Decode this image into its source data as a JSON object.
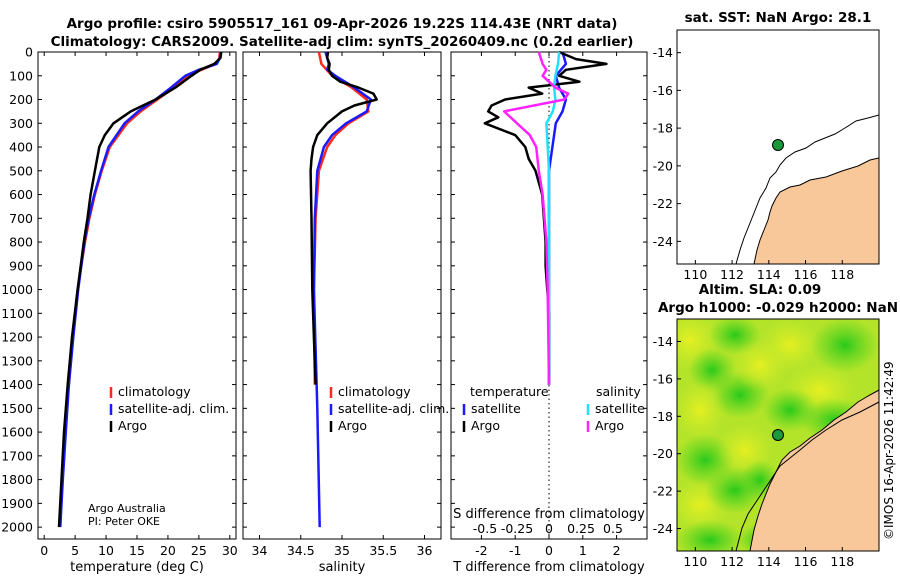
{
  "header": {
    "title_line1": "Argo profile: csiro 5905517_161 09-Apr-2026 19.22S 114.43E (NRT data)",
    "title_line2": "Climatology: CARS2009. Satellite-adj clim: synTS_20260409.nc (0.2d earlier)"
  },
  "colors": {
    "climatology": "#ff2a1a",
    "satellite": "#1a1aff",
    "argo": "#000000",
    "sat_salinity": "#22e0ff",
    "argo_salinity": "#ff22ff",
    "land": "#f9c89a",
    "float": "#1a9a3a"
  },
  "depth_axis": {
    "ticks": [
      "0",
      "100",
      "200",
      "300",
      "400",
      "500",
      "600",
      "700",
      "800",
      "900",
      "1000",
      "1100",
      "1200",
      "1300",
      "1400",
      "1500",
      "1600",
      "1700",
      "1800",
      "1900",
      "2000"
    ],
    "min": 0,
    "max": 2050
  },
  "credit": {
    "line1": "Argo Australia",
    "line2": "PI: Peter OKE"
  },
  "watermark": "©IMOS 16-Apr-2026 11:42:49",
  "chart_data": [
    {
      "type": "line",
      "name": "temperature",
      "xlabel": "temperature (deg C)",
      "xlim": [
        -1,
        31
      ],
      "xticks": [
        "0",
        "5",
        "10",
        "15",
        "20",
        "25",
        "30"
      ],
      "ylim": [
        0,
        2050
      ],
      "legend": [
        "climatology",
        "satellite-adj. clim.",
        "Argo"
      ],
      "series": [
        {
          "name": "climatology",
          "depth": [
            0,
            25,
            50,
            75,
            100,
            150,
            200,
            250,
            300,
            400,
            500,
            600,
            700,
            800,
            1000,
            1200,
            1400
          ],
          "values": [
            28.4,
            28.3,
            27.8,
            25.4,
            23.4,
            21.0,
            18.3,
            15.6,
            13.4,
            10.6,
            9.3,
            8.2,
            7.3,
            6.6,
            5.4,
            4.6,
            4.0
          ]
        },
        {
          "name": "satellite",
          "depth": [
            0,
            25,
            50,
            75,
            100,
            150,
            200,
            250,
            300,
            400,
            500,
            600,
            700,
            800,
            900,
            1000,
            1200,
            1400,
            1600,
            1800,
            2000
          ],
          "values": [
            28.6,
            28.4,
            27.9,
            25.0,
            22.8,
            20.5,
            18.0,
            15.2,
            13.0,
            10.4,
            9.2,
            8.1,
            7.2,
            6.5,
            6.0,
            5.5,
            4.7,
            4.0,
            3.5,
            3.0,
            2.6
          ]
        },
        {
          "name": "Argo",
          "depth": [
            0,
            25,
            50,
            75,
            100,
            150,
            200,
            250,
            300,
            350,
            400,
            500,
            600,
            700,
            800,
            1000,
            1200,
            1400,
            1600,
            1800,
            2000
          ],
          "values": [
            28.6,
            28.5,
            27.5,
            25.2,
            23.8,
            21.2,
            18.0,
            14.0,
            11.2,
            9.8,
            8.9,
            8.2,
            7.5,
            7.0,
            6.4,
            5.4,
            4.5,
            3.8,
            3.2,
            2.8,
            2.4
          ]
        }
      ]
    },
    {
      "type": "line",
      "name": "salinity",
      "xlabel": "salinity",
      "xlim": [
        33.8,
        36.2
      ],
      "xticks": [
        "34",
        "34.5",
        "35",
        "35.5",
        "36"
      ],
      "ylim": [
        0,
        2050
      ],
      "legend": [
        "climatology",
        "satellite-adj. clim.",
        "Argo"
      ],
      "series": [
        {
          "name": "climatology",
          "depth": [
            0,
            50,
            100,
            150,
            200,
            250,
            300,
            350,
            400,
            500,
            700,
            1000,
            1400
          ],
          "values": [
            34.72,
            34.75,
            34.88,
            35.12,
            35.3,
            35.32,
            35.08,
            34.92,
            34.82,
            34.72,
            34.68,
            34.66,
            34.67
          ]
        },
        {
          "name": "satellite",
          "depth": [
            0,
            25,
            50,
            75,
            100,
            150,
            200,
            250,
            300,
            350,
            400,
            500,
            700,
            1000,
            1500,
            2000
          ],
          "values": [
            34.8,
            34.82,
            34.84,
            34.82,
            34.92,
            35.15,
            35.35,
            35.3,
            35.05,
            34.88,
            34.78,
            34.7,
            34.67,
            34.66,
            34.7,
            34.73
          ]
        },
        {
          "name": "Argo",
          "depth": [
            0,
            25,
            50,
            75,
            100,
            125,
            150,
            175,
            200,
            225,
            250,
            300,
            350,
            400,
            450,
            500,
            700,
            1000,
            1200,
            1400
          ],
          "values": [
            34.83,
            34.82,
            34.85,
            34.84,
            34.88,
            34.98,
            35.2,
            35.38,
            35.42,
            35.15,
            35.0,
            34.82,
            34.7,
            34.65,
            34.63,
            34.62,
            34.63,
            34.64,
            34.66,
            34.68
          ]
        }
      ]
    },
    {
      "type": "line",
      "name": "differences",
      "xlabel": "T difference from climatology",
      "xlabel_top": "S difference from climatology",
      "xlim": [
        -2.9,
        2.9
      ],
      "xticks": [
        "-2",
        "-1",
        "0",
        "1",
        "2"
      ],
      "xticks_top": [
        "-0.5",
        "-0.25",
        "0",
        "0.25",
        "0.5"
      ],
      "ylim": [
        0,
        2050
      ],
      "legend_headers": [
        "temperature",
        "salinity"
      ],
      "legend_left": [
        "satellite",
        "Argo"
      ],
      "legend_right": [
        "satellite",
        "Argo"
      ],
      "series": [
        {
          "name": "T satellite",
          "depth": [
            0,
            50,
            100,
            150,
            200,
            250,
            300,
            400,
            500,
            600,
            800,
            1000,
            1400
          ],
          "values": [
            0.4,
            0.5,
            0.2,
            0.3,
            0.5,
            0.4,
            0.2,
            0.1,
            0.0,
            0.0,
            0.0,
            0.0,
            0.0
          ]
        },
        {
          "name": "T Argo",
          "depth": [
            0,
            30,
            50,
            75,
            100,
            125,
            150,
            175,
            200,
            225,
            250,
            275,
            300,
            350,
            400,
            450,
            500,
            600,
            700,
            800,
            900,
            1000,
            1100,
            1200,
            1300,
            1400
          ],
          "values": [
            0.3,
            0.8,
            1.7,
            0.5,
            0.3,
            0.9,
            -0.6,
            -0.2,
            -1.3,
            -1.7,
            -1.8,
            -1.5,
            -1.9,
            -1.0,
            -0.7,
            -0.6,
            -0.4,
            -0.2,
            -0.15,
            -0.1,
            -0.1,
            -0.05,
            0.0,
            0.0,
            0.0,
            0.0
          ]
        },
        {
          "name": "S satellite",
          "depth": [
            0,
            50,
            100,
            150,
            200,
            250,
            300,
            400,
            500,
            700,
            1000,
            1400
          ],
          "values": [
            0.08,
            0.07,
            0.05,
            0.04,
            0.05,
            0.03,
            -0.02,
            -0.01,
            0.0,
            0.0,
            0.0,
            0.0
          ]
        },
        {
          "name": "S Argo",
          "depth": [
            0,
            50,
            75,
            100,
            150,
            175,
            200,
            250,
            300,
            350,
            400,
            500,
            600,
            800,
            1000,
            1400
          ],
          "values": [
            -0.08,
            -0.05,
            -0.02,
            -0.05,
            0.05,
            0.15,
            0.12,
            -0.35,
            -0.25,
            -0.15,
            -0.1,
            -0.08,
            -0.05,
            -0.02,
            -0.01,
            0.0
          ]
        }
      ]
    },
    {
      "type": "map",
      "name": "sst-map",
      "title": "sat. SST: NaN Argo: 28.1",
      "xticks": [
        "110",
        "112",
        "114",
        "116",
        "118"
      ],
      "yticks": [
        "-14",
        "-16",
        "-18",
        "-20",
        "-22",
        "-24"
      ],
      "xlim": [
        109,
        120
      ],
      "ylim": [
        -25.2,
        -12.8
      ],
      "float_position": {
        "lon": 114.43,
        "lat": -19.22
      }
    },
    {
      "type": "heatmap",
      "name": "sla-map",
      "title_line1": "Altim. SLA: 0.09",
      "title_line2": "Argo h1000: -0.029 h2000: NaN",
      "xticks": [
        "110",
        "112",
        "114",
        "116",
        "118"
      ],
      "yticks": [
        "-14",
        "-16",
        "-18",
        "-20",
        "-22",
        "-24"
      ],
      "xlim": [
        109,
        120
      ],
      "ylim": [
        -25.2,
        -12.8
      ],
      "float_position": {
        "lon": 114.43,
        "lat": -19.22
      }
    }
  ]
}
